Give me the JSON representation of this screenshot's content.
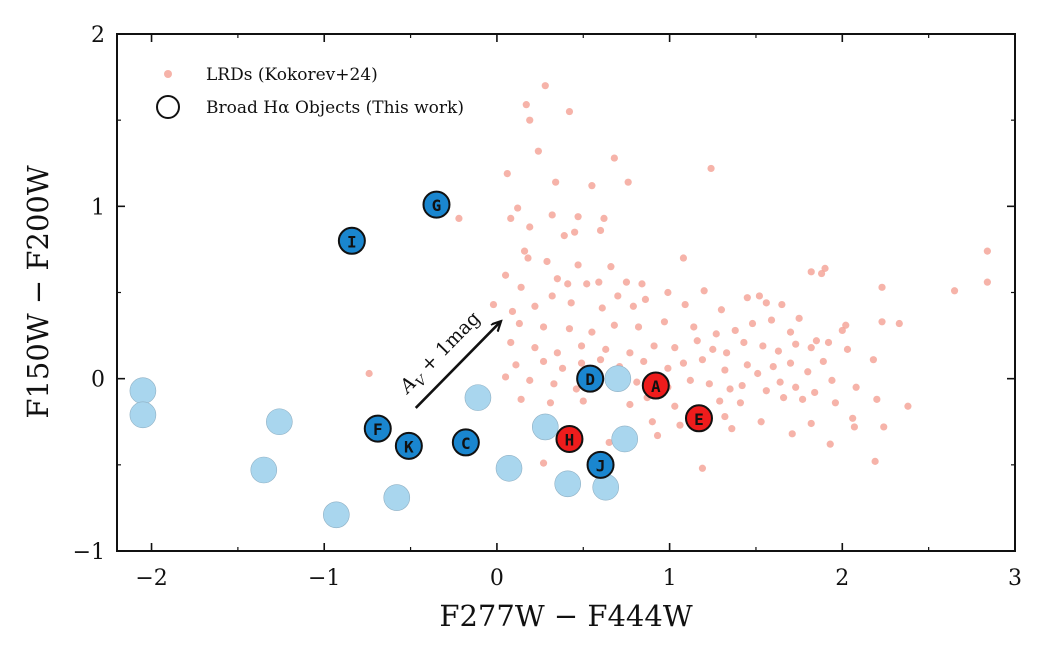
{
  "chart_data": {
    "type": "scatter",
    "xlabel": "F277W − F444W",
    "ylabel": "F150W − F200W",
    "xlim": [
      -2.2,
      3.0
    ],
    "ylim": [
      -1.0,
      2.0
    ],
    "xticks": [
      -2,
      -1,
      0,
      1,
      2,
      3
    ],
    "yticks": [
      -1,
      0,
      1,
      2
    ],
    "xtick_labels": [
      "−2",
      "−1",
      "0",
      "1",
      "2",
      "3"
    ],
    "ytick_labels": [
      "−1",
      "0",
      "1",
      "2"
    ],
    "legend_position": "top-left",
    "legend": [
      {
        "label": "LRDs (Kokorev+24)",
        "marker": "small-dot"
      },
      {
        "label": "Broad Hα Objects (This work)",
        "marker": "open-circle"
      }
    ],
    "colors": {
      "lrd": "#f4a093",
      "light_blue": "#a9d6ee",
      "blue": "#1a86cf",
      "red": "#ee1c1c"
    },
    "annotation": {
      "text": "A",
      "subscript": "V",
      "suffix": " + 1mag",
      "x_from": -0.47,
      "y_from": -0.17,
      "x_to": 0.02,
      "y_to": 0.33
    },
    "light_blue_points": [
      {
        "x": -2.05,
        "y": -0.07
      },
      {
        "x": -2.05,
        "y": -0.21
      },
      {
        "x": -1.35,
        "y": -0.53
      },
      {
        "x": -1.26,
        "y": -0.25
      },
      {
        "x": -0.93,
        "y": -0.79
      },
      {
        "x": -0.58,
        "y": -0.69
      },
      {
        "x": -0.11,
        "y": -0.11
      },
      {
        "x": 0.07,
        "y": -0.52
      },
      {
        "x": 0.28,
        "y": -0.28
      },
      {
        "x": 0.41,
        "y": -0.61
      },
      {
        "x": 0.63,
        "y": -0.63
      },
      {
        "x": 0.74,
        "y": -0.35
      },
      {
        "x": 0.7,
        "y": 0.0
      }
    ],
    "blue_objects": [
      {
        "label": "G",
        "x": -0.35,
        "y": 1.01
      },
      {
        "label": "I",
        "x": -0.84,
        "y": 0.8
      },
      {
        "label": "F",
        "x": -0.69,
        "y": -0.29
      },
      {
        "label": "K",
        "x": -0.51,
        "y": -0.39
      },
      {
        "label": "C",
        "x": -0.18,
        "y": -0.37
      },
      {
        "label": "D",
        "x": 0.54,
        "y": 0.0
      },
      {
        "label": "J",
        "x": 0.6,
        "y": -0.5
      }
    ],
    "red_objects": [
      {
        "label": "A",
        "x": 0.92,
        "y": -0.04
      },
      {
        "label": "H",
        "x": 0.42,
        "y": -0.35
      },
      {
        "label": "E",
        "x": 1.17,
        "y": -0.23
      }
    ],
    "lrd_points": [
      [
        0.28,
        1.7
      ],
      [
        0.17,
        1.59
      ],
      [
        0.42,
        1.55
      ],
      [
        0.19,
        1.5
      ],
      [
        0.24,
        1.32
      ],
      [
        0.68,
        1.28
      ],
      [
        1.24,
        1.22
      ],
      [
        0.06,
        1.19
      ],
      [
        0.34,
        1.14
      ],
      [
        0.55,
        1.12
      ],
      [
        0.76,
        1.14
      ],
      [
        0.12,
        0.99
      ],
      [
        0.32,
        0.95
      ],
      [
        0.47,
        0.94
      ],
      [
        0.08,
        0.93
      ],
      [
        -0.22,
        0.93
      ],
      [
        0.62,
        0.93
      ],
      [
        0.19,
        0.88
      ],
      [
        0.6,
        0.86
      ],
      [
        0.39,
        0.83
      ],
      [
        0.45,
        0.85
      ],
      [
        0.16,
        0.74
      ],
      [
        0.05,
        0.6
      ],
      [
        0.29,
        0.68
      ],
      [
        0.47,
        0.66
      ],
      [
        0.66,
        0.65
      ],
      [
        1.08,
        0.7
      ],
      [
        0.18,
        0.7
      ],
      [
        0.35,
        0.58
      ],
      [
        0.41,
        0.55
      ],
      [
        0.59,
        0.56
      ],
      [
        0.75,
        0.56
      ],
      [
        0.84,
        0.55
      ],
      [
        0.99,
        0.5
      ],
      [
        0.14,
        0.53
      ],
      [
        0.32,
        0.48
      ],
      [
        0.52,
        0.55
      ],
      [
        0.7,
        0.48
      ],
      [
        0.86,
        0.46
      ],
      [
        1.2,
        0.51
      ],
      [
        1.52,
        0.48
      ],
      [
        1.9,
        0.64
      ],
      [
        1.88,
        0.61
      ],
      [
        1.82,
        0.62
      ],
      [
        2.84,
        0.74
      ],
      [
        2.84,
        0.56
      ],
      [
        2.65,
        0.51
      ],
      [
        2.23,
        0.53
      ],
      [
        -0.02,
        0.43
      ],
      [
        0.09,
        0.39
      ],
      [
        0.22,
        0.42
      ],
      [
        0.43,
        0.44
      ],
      [
        0.61,
        0.41
      ],
      [
        0.79,
        0.42
      ],
      [
        1.09,
        0.43
      ],
      [
        1.3,
        0.4
      ],
      [
        1.45,
        0.47
      ],
      [
        1.56,
        0.44
      ],
      [
        1.65,
        0.43
      ],
      [
        1.75,
        0.35
      ],
      [
        2.02,
        0.31
      ],
      [
        2.23,
        0.33
      ],
      [
        0.13,
        0.32
      ],
      [
        0.27,
        0.3
      ],
      [
        0.42,
        0.29
      ],
      [
        0.55,
        0.27
      ],
      [
        0.68,
        0.31
      ],
      [
        0.82,
        0.3
      ],
      [
        0.97,
        0.33
      ],
      [
        1.14,
        0.3
      ],
      [
        1.27,
        0.26
      ],
      [
        1.38,
        0.28
      ],
      [
        1.48,
        0.32
      ],
      [
        1.59,
        0.34
      ],
      [
        1.7,
        0.27
      ],
      [
        1.85,
        0.22
      ],
      [
        2.0,
        0.28
      ],
      [
        2.33,
        0.32
      ],
      [
        0.08,
        0.21
      ],
      [
        0.22,
        0.18
      ],
      [
        0.35,
        0.15
      ],
      [
        0.49,
        0.19
      ],
      [
        0.63,
        0.17
      ],
      [
        0.77,
        0.15
      ],
      [
        0.91,
        0.19
      ],
      [
        1.03,
        0.18
      ],
      [
        1.16,
        0.22
      ],
      [
        1.25,
        0.17
      ],
      [
        1.33,
        0.15
      ],
      [
        1.43,
        0.21
      ],
      [
        1.54,
        0.19
      ],
      [
        1.63,
        0.16
      ],
      [
        1.73,
        0.2
      ],
      [
        1.82,
        0.18
      ],
      [
        1.92,
        0.21
      ],
      [
        2.03,
        0.17
      ],
      [
        2.18,
        0.11
      ],
      [
        0.11,
        0.08
      ],
      [
        0.27,
        0.1
      ],
      [
        0.38,
        0.06
      ],
      [
        0.49,
        0.09
      ],
      [
        0.6,
        0.11
      ],
      [
        0.71,
        0.07
      ],
      [
        0.85,
        0.1
      ],
      [
        0.99,
        0.06
      ],
      [
        1.08,
        0.09
      ],
      [
        1.19,
        0.11
      ],
      [
        1.32,
        0.05
      ],
      [
        1.45,
        0.08
      ],
      [
        1.51,
        0.03
      ],
      [
        1.6,
        0.07
      ],
      [
        1.7,
        0.09
      ],
      [
        1.8,
        0.04
      ],
      [
        1.89,
        0.1
      ],
      [
        -0.74,
        0.03
      ],
      [
        0.05,
        0.01
      ],
      [
        0.19,
        -0.01
      ],
      [
        0.33,
        -0.03
      ],
      [
        0.46,
        -0.06
      ],
      [
        0.81,
        -0.02
      ],
      [
        0.99,
        -0.05
      ],
      [
        1.12,
        -0.01
      ],
      [
        1.23,
        -0.03
      ],
      [
        1.35,
        -0.06
      ],
      [
        1.42,
        -0.04
      ],
      [
        1.56,
        -0.07
      ],
      [
        1.64,
        -0.02
      ],
      [
        1.73,
        -0.05
      ],
      [
        1.84,
        -0.08
      ],
      [
        1.94,
        -0.01
      ],
      [
        2.08,
        -0.05
      ],
      [
        0.14,
        -0.12
      ],
      [
        0.31,
        -0.14
      ],
      [
        0.5,
        -0.13
      ],
      [
        0.77,
        -0.15
      ],
      [
        0.87,
        -0.11
      ],
      [
        1.03,
        -0.16
      ],
      [
        1.29,
        -0.13
      ],
      [
        1.41,
        -0.14
      ],
      [
        1.66,
        -0.11
      ],
      [
        1.77,
        -0.12
      ],
      [
        1.96,
        -0.14
      ],
      [
        2.38,
        -0.16
      ],
      [
        2.2,
        -0.12
      ],
      [
        0.9,
        -0.25
      ],
      [
        1.06,
        -0.27
      ],
      [
        1.32,
        -0.22
      ],
      [
        1.53,
        -0.25
      ],
      [
        1.82,
        -0.26
      ],
      [
        2.06,
        -0.23
      ],
      [
        2.07,
        -0.28
      ],
      [
        2.24,
        -0.28
      ],
      [
        0.65,
        -0.37
      ],
      [
        0.93,
        -0.33
      ],
      [
        1.36,
        -0.29
      ],
      [
        1.71,
        -0.32
      ],
      [
        1.93,
        -0.38
      ],
      [
        2.19,
        -0.48
      ],
      [
        1.19,
        -0.52
      ],
      [
        0.27,
        -0.49
      ]
    ]
  }
}
